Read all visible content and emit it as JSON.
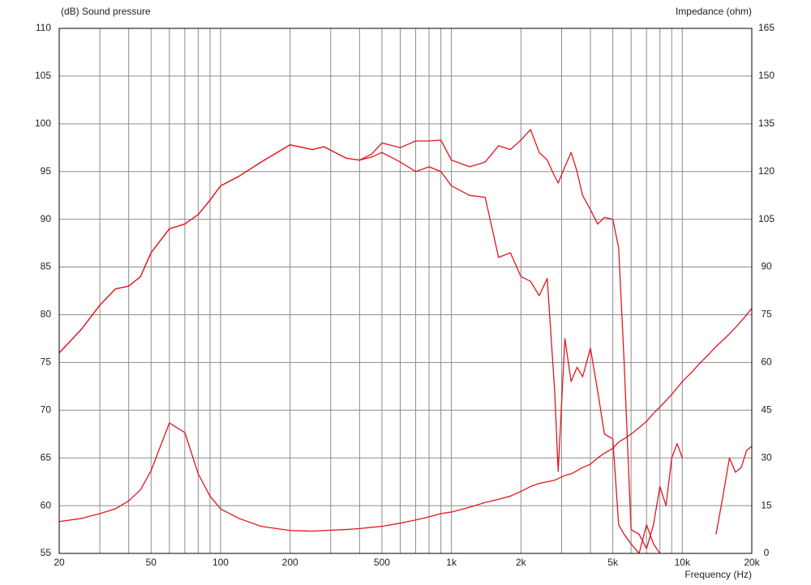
{
  "chart_data": {
    "type": "line",
    "y_label": "(dB)  Sound pressure",
    "y2_label": "Impedance  (ohm)",
    "x_label": "Frequency  (Hz)",
    "xscale": "log",
    "grid": true,
    "xlim": [
      20,
      20000
    ],
    "ylim": [
      55,
      110
    ],
    "y2lim": [
      0,
      165
    ],
    "xticks": [
      20,
      {
        "value": 30,
        "label": null
      },
      {
        "value": 40,
        "label": null
      },
      50,
      {
        "value": 60,
        "label": null
      },
      {
        "value": 70,
        "label": null
      },
      {
        "value": 80,
        "label": null
      },
      {
        "value": 90,
        "label": null
      },
      100,
      200,
      {
        "value": 300,
        "label": null
      },
      {
        "value": 400,
        "label": null
      },
      500,
      {
        "value": 600,
        "label": null
      },
      {
        "value": 700,
        "label": null
      },
      {
        "value": 800,
        "label": null
      },
      {
        "value": 900,
        "label": null
      },
      {
        "value": 1000,
        "label": "1k"
      },
      {
        "value": 2000,
        "label": "2k"
      },
      {
        "value": 3000,
        "label": null
      },
      {
        "value": 4000,
        "label": null
      },
      {
        "value": 5000,
        "label": "5k"
      },
      {
        "value": 6000,
        "label": null
      },
      {
        "value": 7000,
        "label": null
      },
      {
        "value": 8000,
        "label": null
      },
      {
        "value": 9000,
        "label": null
      },
      {
        "value": 10000,
        "label": "10k"
      },
      {
        "value": 20000,
        "label": "20k"
      }
    ],
    "yticks": [
      55,
      60,
      65,
      70,
      75,
      80,
      85,
      90,
      95,
      100,
      105,
      110
    ],
    "y2ticks": [
      0,
      15,
      30,
      45,
      60,
      75,
      90,
      105,
      120,
      135,
      150,
      165
    ],
    "x": [
      20,
      25,
      30,
      35,
      40,
      45,
      50,
      60,
      70,
      80,
      90,
      100,
      120,
      150,
      200,
      250,
      280,
      350,
      400,
      450,
      500,
      600,
      700,
      800,
      900,
      1000,
      1200,
      1400,
      1600,
      1800,
      2000,
      2200,
      2400,
      2600,
      2800,
      2900,
      3100,
      3300,
      3500,
      3700,
      4000,
      4300,
      4600,
      5000,
      5300,
      5600,
      6000,
      6500,
      7000,
      7500,
      8000,
      8500,
      9000,
      9500,
      10000,
      11000,
      12000,
      13000,
      14000,
      15000,
      16000,
      17000,
      18000,
      19000,
      20000
    ],
    "series": [
      {
        "color": "#e3151e",
        "values": [
          76,
          78.5,
          81,
          82.7,
          83,
          84,
          86.5,
          89,
          89.5,
          90.5,
          92,
          93.5,
          94.5,
          96,
          97.8,
          97.3,
          97.6,
          96.4,
          96.2,
          96.8,
          98,
          97.5,
          98.2,
          98.2,
          98.3,
          96.2,
          95.5,
          96,
          97.7,
          97.3,
          98.3,
          99.4,
          97,
          96.2,
          94.5,
          93.8,
          95.5,
          97,
          95,
          92.5,
          91,
          89.5,
          90.2,
          90,
          87,
          75,
          57.5,
          57,
          55.5,
          58,
          62,
          60,
          65,
          66.5,
          65,
          null,
          null,
          null,
          57,
          61,
          65,
          63.5,
          64,
          65.8,
          66.2
        ]
      },
      {
        "color": "#e3151e",
        "values": [
          76,
          78.5,
          81,
          82.7,
          83,
          84,
          86.5,
          89,
          89.5,
          90.5,
          92,
          93.5,
          94.5,
          96,
          97.8,
          97.3,
          97.6,
          96.4,
          96.2,
          96.5,
          97,
          96,
          95,
          95.5,
          95,
          93.5,
          92.5,
          92.3,
          86,
          86.5,
          84,
          83.5,
          82,
          83.8,
          72,
          63.6,
          77.5,
          73,
          74.5,
          73.5,
          76.5,
          72,
          67.5,
          67,
          58,
          57,
          56,
          55,
          58,
          56,
          55,
          null,
          null,
          null,
          null,
          null,
          null,
          null,
          null,
          null,
          null,
          null,
          null,
          null,
          null
        ]
      },
      {
        "color": "#e3151e",
        "axis": "y2",
        "values": [
          10,
          11,
          12.5,
          14,
          16.5,
          20,
          26,
          41,
          38,
          25,
          18,
          14,
          11,
          8.5,
          7.2,
          7,
          7.2,
          7.5,
          7.8,
          8.2,
          8.5,
          9.5,
          10.5,
          11.5,
          12.5,
          13,
          14.5,
          16,
          17,
          18,
          19.5,
          21,
          22,
          22.5,
          23,
          23.5,
          24.5,
          25,
          26,
          27,
          28,
          30,
          31.5,
          33,
          35,
          36,
          37.5,
          39.5,
          41.5,
          44,
          46,
          48,
          50,
          52,
          54,
          57,
          60,
          62.5,
          65,
          67,
          69,
          71,
          73,
          75,
          77
        ]
      }
    ]
  }
}
